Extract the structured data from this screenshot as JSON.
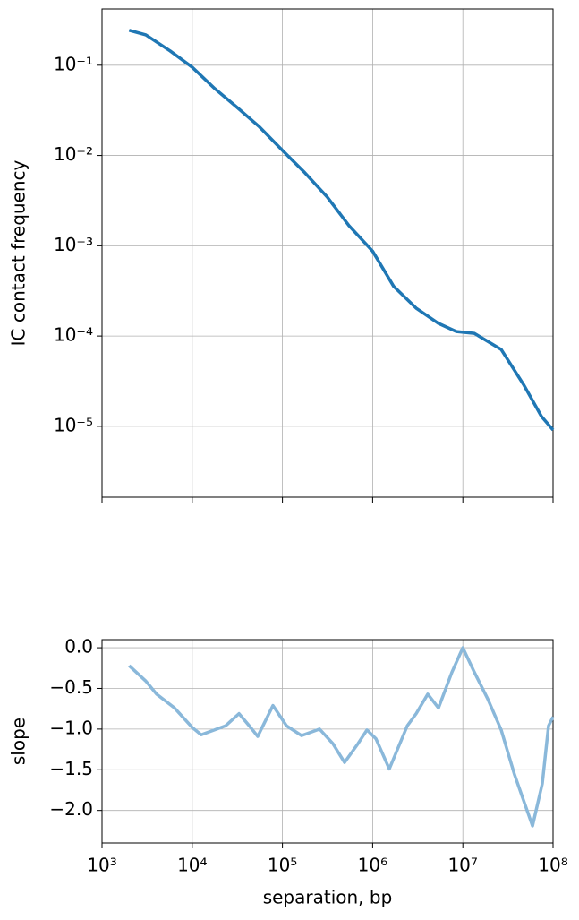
{
  "chart_data": [
    {
      "type": "line",
      "ylabel": "IC contact frequency",
      "x": [
        2000,
        3060,
        5680,
        10000,
        17800,
        31500,
        55700,
        100000,
        177000,
        313000,
        547000,
        1000000,
        1710000,
        3030000,
        5370000,
        8500000,
        13400000,
        26600000,
        47100000,
        74300000,
        100000000
      ],
      "series": [
        {
          "color": "#1f77b4",
          "values": [
            0.244,
            0.217,
            0.144,
            0.095,
            0.055,
            0.034,
            0.0207,
            0.0114,
            0.00645,
            0.00348,
            0.00167,
            0.00087,
            0.000355,
            0.000204,
            0.000138,
            0.000112,
            0.000107,
            7.1e-05,
            2.9e-05,
            1.29e-05,
            9.1e-06
          ]
        }
      ],
      "xscale": "log",
      "yscale": "log",
      "grid": true,
      "xlim": [
        1000,
        100000000
      ],
      "ylim": [
        1.64e-06,
        0.42
      ],
      "xticks": [
        1000,
        10000,
        100000,
        1000000,
        10000000,
        100000000
      ],
      "yticks": [
        {
          "value": 0.1,
          "label": "10⁻¹"
        },
        {
          "value": 0.01,
          "label": "10⁻²"
        },
        {
          "value": 0.001,
          "label": "10⁻³"
        },
        {
          "value": 0.0001,
          "label": "10⁻⁴"
        },
        {
          "value": 1e-05,
          "label": "10⁻⁵"
        }
      ]
    },
    {
      "type": "line",
      "ylabel": "slope",
      "xlabel": "separation, bp",
      "x": [
        2000,
        3060,
        4030,
        6360,
        10000,
        12560,
        17700,
        23400,
        33000,
        44400,
        53200,
        78500,
        111000,
        163000,
        258000,
        363000,
        488000,
        687000,
        865000,
        1090000,
        1530000,
        2420000,
        3040000,
        4080000,
        5370000,
        7570000,
        10000000,
        13400000,
        18900000,
        26600000,
        37400000,
        59200000,
        76000000,
        89100000,
        100000000
      ],
      "series": [
        {
          "color": "#8ab8da",
          "values": [
            -0.22,
            -0.41,
            -0.57,
            -0.74,
            -0.98,
            -1.07,
            -1.01,
            -0.96,
            -0.81,
            -0.98,
            -1.09,
            -0.71,
            -0.96,
            -1.08,
            -1.0,
            -1.18,
            -1.41,
            -1.18,
            -1.01,
            -1.12,
            -1.49,
            -0.96,
            -0.81,
            -0.57,
            -0.74,
            -0.3,
            0.0,
            -0.3,
            -0.63,
            -1.01,
            -1.56,
            -2.19,
            -1.67,
            -0.96,
            -0.85
          ]
        }
      ],
      "xscale": "log",
      "grid": true,
      "xlim": [
        1000,
        100000000
      ],
      "ylim": [
        -2.4,
        0.1
      ],
      "xticks": [
        {
          "value": 1000,
          "label": "10³"
        },
        {
          "value": 10000,
          "label": "10⁴"
        },
        {
          "value": 100000,
          "label": "10⁵"
        },
        {
          "value": 1000000,
          "label": "10⁶"
        },
        {
          "value": 10000000,
          "label": "10⁷"
        },
        {
          "value": 100000000,
          "label": "10⁸"
        }
      ],
      "yticks": [
        {
          "value": 0,
          "label": "0.0"
        },
        {
          "value": -0.5,
          "label": "−0.5"
        },
        {
          "value": -1,
          "label": "−1.0"
        },
        {
          "value": -1.5,
          "label": "−1.5"
        },
        {
          "value": -2,
          "label": "−2.0"
        }
      ]
    }
  ]
}
